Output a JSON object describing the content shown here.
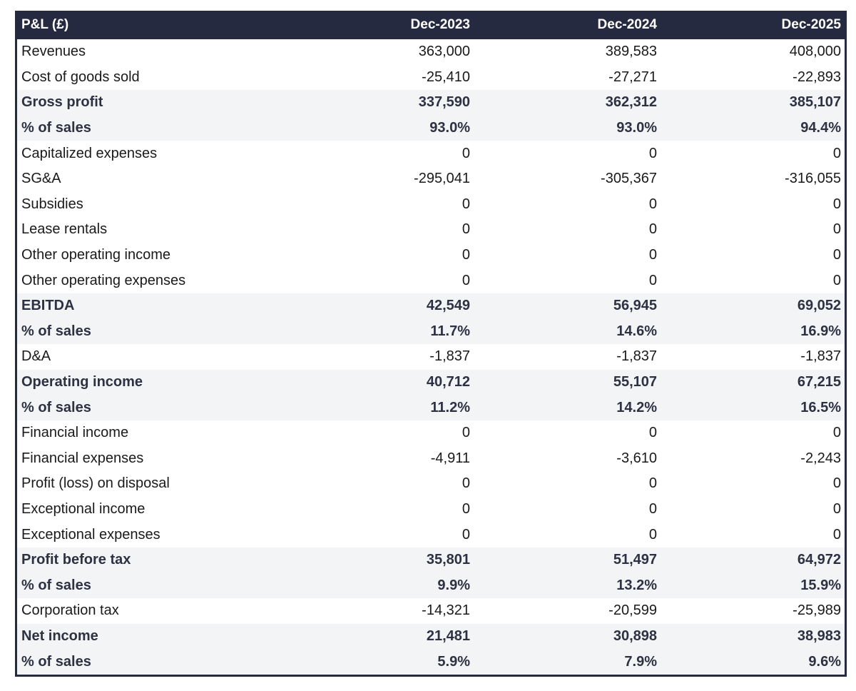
{
  "table": {
    "headers": [
      "P&L (£)",
      "Dec-2023",
      "Dec-2024",
      "Dec-2025"
    ],
    "rows": [
      {
        "label": "Revenues",
        "values": [
          "363,000",
          "389,583",
          "408,000"
        ],
        "bold": false
      },
      {
        "label": "Cost of goods sold",
        "values": [
          "-25,410",
          "-27,271",
          "-22,893"
        ],
        "bold": false
      },
      {
        "label": "Gross profit",
        "values": [
          "337,590",
          "362,312",
          "385,107"
        ],
        "bold": true
      },
      {
        "label": "% of sales",
        "values": [
          "93.0%",
          "93.0%",
          "94.4%"
        ],
        "bold": true
      },
      {
        "label": "Capitalized expenses",
        "values": [
          "0",
          "0",
          "0"
        ],
        "bold": false
      },
      {
        "label": "SG&A",
        "values": [
          "-295,041",
          "-305,367",
          "-316,055"
        ],
        "bold": false
      },
      {
        "label": "Subsidies",
        "values": [
          "0",
          "0",
          "0"
        ],
        "bold": false
      },
      {
        "label": "Lease rentals",
        "values": [
          "0",
          "0",
          "0"
        ],
        "bold": false
      },
      {
        "label": "Other operating income",
        "values": [
          "0",
          "0",
          "0"
        ],
        "bold": false
      },
      {
        "label": "Other operating expenses",
        "values": [
          "0",
          "0",
          "0"
        ],
        "bold": false
      },
      {
        "label": "EBITDA",
        "values": [
          "42,549",
          "56,945",
          "69,052"
        ],
        "bold": true
      },
      {
        "label": "% of sales",
        "values": [
          "11.7%",
          "14.6%",
          "16.9%"
        ],
        "bold": true
      },
      {
        "label": "D&A",
        "values": [
          "-1,837",
          "-1,837",
          "-1,837"
        ],
        "bold": false
      },
      {
        "label": "Operating income",
        "values": [
          "40,712",
          "55,107",
          "67,215"
        ],
        "bold": true
      },
      {
        "label": "% of sales",
        "values": [
          "11.2%",
          "14.2%",
          "16.5%"
        ],
        "bold": true
      },
      {
        "label": "Financial income",
        "values": [
          "0",
          "0",
          "0"
        ],
        "bold": false
      },
      {
        "label": "Financial expenses",
        "values": [
          "-4,911",
          "-3,610",
          "-2,243"
        ],
        "bold": false
      },
      {
        "label": "Profit (loss) on disposal",
        "values": [
          "0",
          "0",
          "0"
        ],
        "bold": false
      },
      {
        "label": "Exceptional income",
        "values": [
          "0",
          "0",
          "0"
        ],
        "bold": false
      },
      {
        "label": "Exceptional expenses",
        "values": [
          "0",
          "0",
          "0"
        ],
        "bold": false
      },
      {
        "label": "Profit before tax",
        "values": [
          "35,801",
          "51,497",
          "64,972"
        ],
        "bold": true
      },
      {
        "label": "% of sales",
        "values": [
          "9.9%",
          "13.2%",
          "15.9%"
        ],
        "bold": true
      },
      {
        "label": "Corporation tax",
        "values": [
          "-14,321",
          "-20,599",
          "-25,989"
        ],
        "bold": false
      },
      {
        "label": "Net income",
        "values": [
          "21,481",
          "30,898",
          "38,983"
        ],
        "bold": true
      },
      {
        "label": "% of sales",
        "values": [
          "5.9%",
          "7.9%",
          "9.6%"
        ],
        "bold": true
      }
    ]
  },
  "colors": {
    "header_bg": "#262a40",
    "highlight_bg": "#f2f4f6",
    "bold_text": "#2d3142"
  }
}
